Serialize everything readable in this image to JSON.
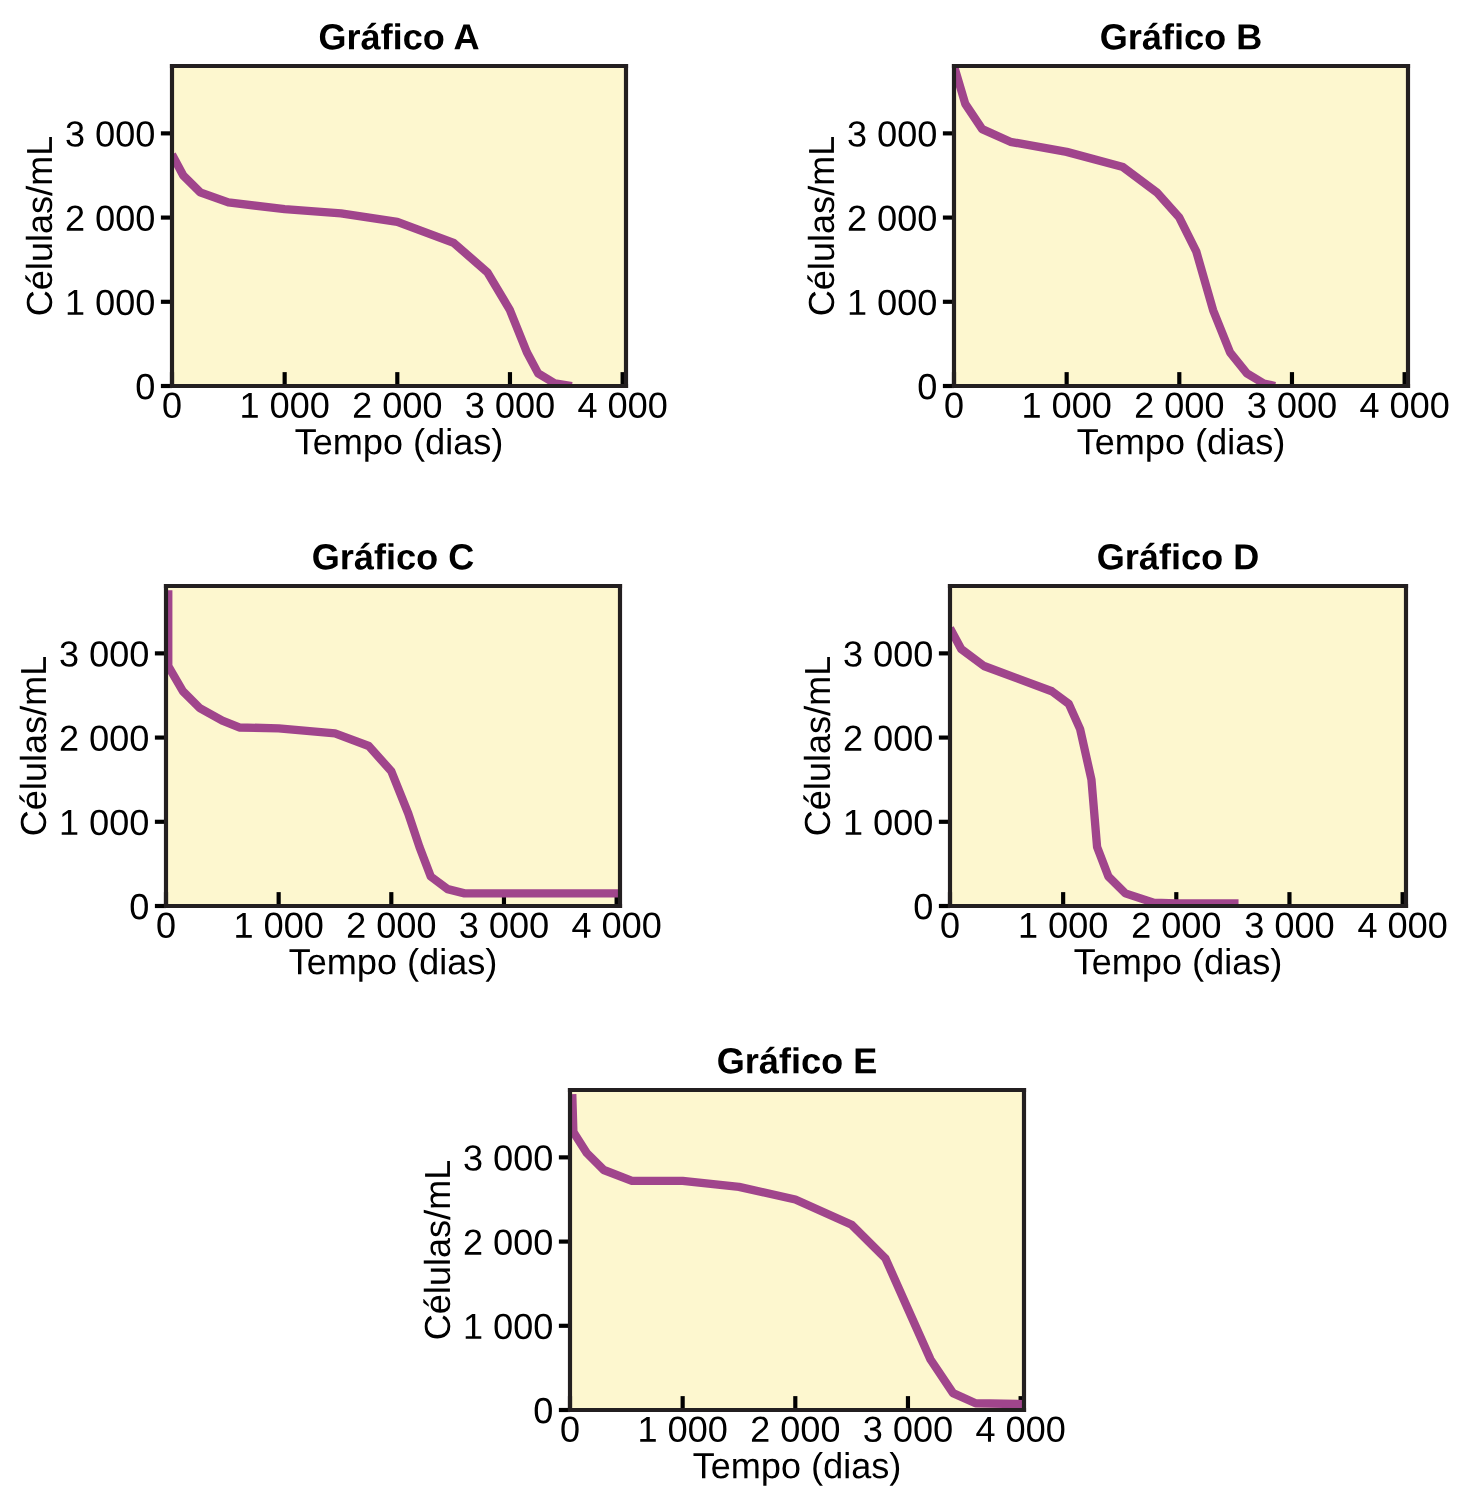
{
  "chart_data": [
    {
      "type": "line",
      "title": "Gráfico A",
      "xlabel": "Tempo (dias)",
      "ylabel": "Células/mL",
      "xlim": [
        0,
        4030
      ],
      "ylim": [
        0,
        3800
      ],
      "xticks": [
        {
          "value": 0,
          "label": "0"
        },
        {
          "value": 1000,
          "label": "1 000"
        },
        {
          "value": 2000,
          "label": "2 000"
        },
        {
          "value": 3000,
          "label": "3 000"
        },
        {
          "value": 4000,
          "label": "4 000"
        }
      ],
      "yticks": [
        {
          "value": 0,
          "label": "0"
        },
        {
          "value": 1000,
          "label": "1 000"
        },
        {
          "value": 2000,
          "label": "2 000"
        },
        {
          "value": 3000,
          "label": "3 000"
        }
      ],
      "grid": false,
      "legend": false,
      "marker": "none",
      "line_style": "solid",
      "series": [
        {
          "color": "#a0458c",
          "x": [
            0,
            100,
            250,
            500,
            1000,
            1500,
            2000,
            2500,
            2800,
            3000,
            3150,
            3250,
            3400,
            3550
          ],
          "values": [
            2750,
            2500,
            2300,
            2180,
            2100,
            2050,
            1950,
            1700,
            1350,
            900,
            400,
            150,
            30,
            0
          ]
        }
      ]
    },
    {
      "type": "line",
      "title": "Gráfico B",
      "xlabel": "Tempo (dias)",
      "ylabel": "Células/mL",
      "xlim": [
        0,
        4030
      ],
      "ylim": [
        0,
        3800
      ],
      "xticks": [
        {
          "value": 0,
          "label": "0"
        },
        {
          "value": 1000,
          "label": "1 000"
        },
        {
          "value": 2000,
          "label": "2 000"
        },
        {
          "value": 3000,
          "label": "3 000"
        },
        {
          "value": 4000,
          "label": "4 000"
        }
      ],
      "yticks": [
        {
          "value": 0,
          "label": "0"
        },
        {
          "value": 1000,
          "label": "1 000"
        },
        {
          "value": 2000,
          "label": "2 000"
        },
        {
          "value": 3000,
          "label": "3 000"
        }
      ],
      "grid": false,
      "legend": false,
      "marker": "none",
      "line_style": "solid",
      "series": [
        {
          "color": "#a0458c",
          "x": [
            0,
            100,
            250,
            500,
            1000,
            1500,
            1800,
            2000,
            2150,
            2300,
            2450,
            2600,
            2750,
            2850
          ],
          "values": [
            3800,
            3350,
            3050,
            2900,
            2780,
            2600,
            2300,
            2000,
            1600,
            900,
            400,
            150,
            30,
            0
          ]
        }
      ]
    },
    {
      "type": "line",
      "title": "Gráfico C",
      "xlabel": "Tempo (dias)",
      "ylabel": "Células/mL",
      "xlim": [
        0,
        4030
      ],
      "ylim": [
        0,
        3800
      ],
      "xticks": [
        {
          "value": 0,
          "label": "0"
        },
        {
          "value": 1000,
          "label": "1 000"
        },
        {
          "value": 2000,
          "label": "2 000"
        },
        {
          "value": 3000,
          "label": "3 000"
        },
        {
          "value": 4000,
          "label": "4 000"
        }
      ],
      "yticks": [
        {
          "value": 0,
          "label": "0"
        },
        {
          "value": 1000,
          "label": "1 000"
        },
        {
          "value": 2000,
          "label": "2 000"
        },
        {
          "value": 3000,
          "label": "3 000"
        }
      ],
      "grid": false,
      "legend": false,
      "marker": "none",
      "line_style": "solid",
      "series": [
        {
          "color": "#a0458c",
          "x": [
            20,
            20,
            150,
            300,
            500,
            650,
            1000,
            1500,
            1800,
            2000,
            2150,
            2250,
            2350,
            2500,
            2650,
            3000,
            4030
          ],
          "values": [
            3750,
            2850,
            2550,
            2350,
            2200,
            2120,
            2110,
            2050,
            1900,
            1600,
            1100,
            700,
            350,
            200,
            150,
            150,
            150
          ]
        }
      ]
    },
    {
      "type": "line",
      "title": "Gráfico D",
      "xlabel": "Tempo (dias)",
      "ylabel": "Células/mL",
      "xlim": [
        0,
        4030
      ],
      "ylim": [
        0,
        3800
      ],
      "xticks": [
        {
          "value": 0,
          "label": "0"
        },
        {
          "value": 1000,
          "label": "1 000"
        },
        {
          "value": 2000,
          "label": "2 000"
        },
        {
          "value": 3000,
          "label": "3 000"
        },
        {
          "value": 4000,
          "label": "4 000"
        }
      ],
      "yticks": [
        {
          "value": 0,
          "label": "0"
        },
        {
          "value": 1000,
          "label": "1 000"
        },
        {
          "value": 2000,
          "label": "2 000"
        },
        {
          "value": 3000,
          "label": "3 000"
        }
      ],
      "grid": false,
      "legend": false,
      "marker": "none",
      "line_style": "solid",
      "series": [
        {
          "color": "#a0458c",
          "x": [
            0,
            100,
            300,
            600,
            900,
            1050,
            1150,
            1250,
            1300,
            1400,
            1550,
            1800,
            2000,
            2550
          ],
          "values": [
            3300,
            3050,
            2850,
            2700,
            2550,
            2400,
            2100,
            1500,
            700,
            350,
            150,
            40,
            30,
            30
          ]
        }
      ]
    },
    {
      "type": "line",
      "title": "Gráfico E",
      "xlabel": "Tempo (dias)",
      "ylabel": "Células/mL",
      "xlim": [
        0,
        4030
      ],
      "ylim": [
        0,
        3800
      ],
      "xticks": [
        {
          "value": 0,
          "label": "0"
        },
        {
          "value": 1000,
          "label": "1 000"
        },
        {
          "value": 2000,
          "label": "2 000"
        },
        {
          "value": 3000,
          "label": "3 000"
        },
        {
          "value": 4000,
          "label": "4 000"
        }
      ],
      "yticks": [
        {
          "value": 0,
          "label": "0"
        },
        {
          "value": 1000,
          "label": "1 000"
        },
        {
          "value": 2000,
          "label": "2 000"
        },
        {
          "value": 3000,
          "label": "3 000"
        }
      ],
      "grid": false,
      "legend": false,
      "marker": "none",
      "line_style": "solid",
      "series": [
        {
          "color": "#a0458c",
          "x": [
            20,
            30,
            150,
            300,
            550,
            1000,
            1500,
            2000,
            2500,
            2800,
            3000,
            3200,
            3400,
            3600,
            4030
          ],
          "values": [
            3750,
            3300,
            3050,
            2850,
            2720,
            2720,
            2650,
            2500,
            2200,
            1800,
            1200,
            600,
            200,
            80,
            70
          ]
        }
      ]
    }
  ]
}
